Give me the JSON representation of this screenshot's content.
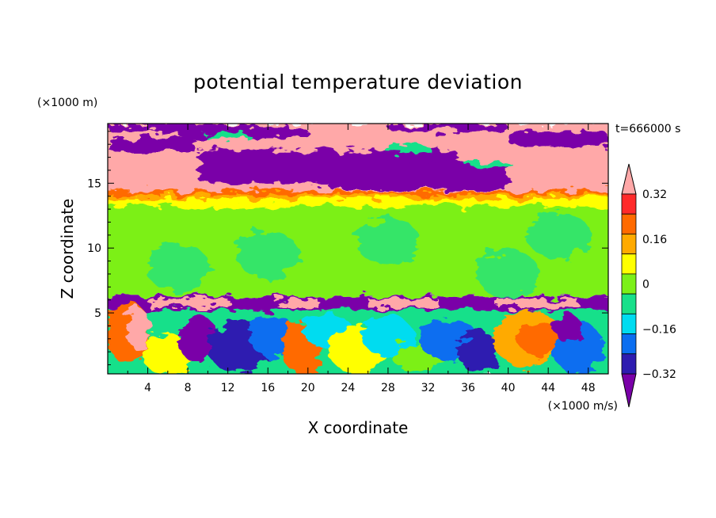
{
  "chart_data": {
    "type": "heatmap",
    "title": "potential temperature deviation",
    "xlabel": "X coordinate",
    "ylabel": "Z coordinate",
    "x_units": "(×1000 m/s)",
    "y_units": "(×1000 m)",
    "time_label": "t=666000 s",
    "xlim": [
      0,
      50
    ],
    "ylim": [
      0.3,
      19.6
    ],
    "x_ticks": [
      4,
      8,
      12,
      16,
      20,
      24,
      28,
      32,
      36,
      40,
      44,
      48
    ],
    "x_tick_labels": [
      "4",
      "8",
      "12",
      "16",
      "20",
      "24",
      "28",
      "32",
      "36",
      "40",
      "44",
      "48"
    ],
    "y_ticks": [
      5,
      10,
      15
    ],
    "y_tick_labels": [
      "5",
      "10",
      "15"
    ],
    "colorbar": {
      "levels": [
        -0.4,
        -0.32,
        -0.24,
        -0.16,
        -0.08,
        0,
        0.08,
        0.16,
        0.24,
        0.32,
        0.4
      ],
      "tick_labels": [
        "0.32",
        "0.16",
        "0",
        "−0.16",
        "−0.32"
      ],
      "tick_values": [
        0.32,
        0.16,
        0,
        -0.16,
        -0.32
      ],
      "colors": [
        "#7a00a8",
        "#2e1cb0",
        "#0b6ef0",
        "#00dcf0",
        "#18e08a",
        "#7cf018",
        "#ffff00",
        "#ffaa00",
        "#ff6a00",
        "#ff2a2a",
        "#ffa8a8"
      ],
      "extend": "both"
    },
    "layers": [
      {
        "z_range": [
          0.3,
          5.2
        ],
        "description": "turbulent mixed layer, full range of colors"
      },
      {
        "z_range": [
          5.2,
          6.2
        ],
        "description": "purple/pink interface band"
      },
      {
        "z_range": [
          6.2,
          13.5
        ],
        "description": "mostly green and light green (near 0)"
      },
      {
        "z_range": [
          13.5,
          14.5
        ],
        "description": "yellow-orange-red gradient"
      },
      {
        "z_range": [
          14.5,
          19.6
        ],
        "description": "alternating pink and purple bands"
      }
    ]
  }
}
